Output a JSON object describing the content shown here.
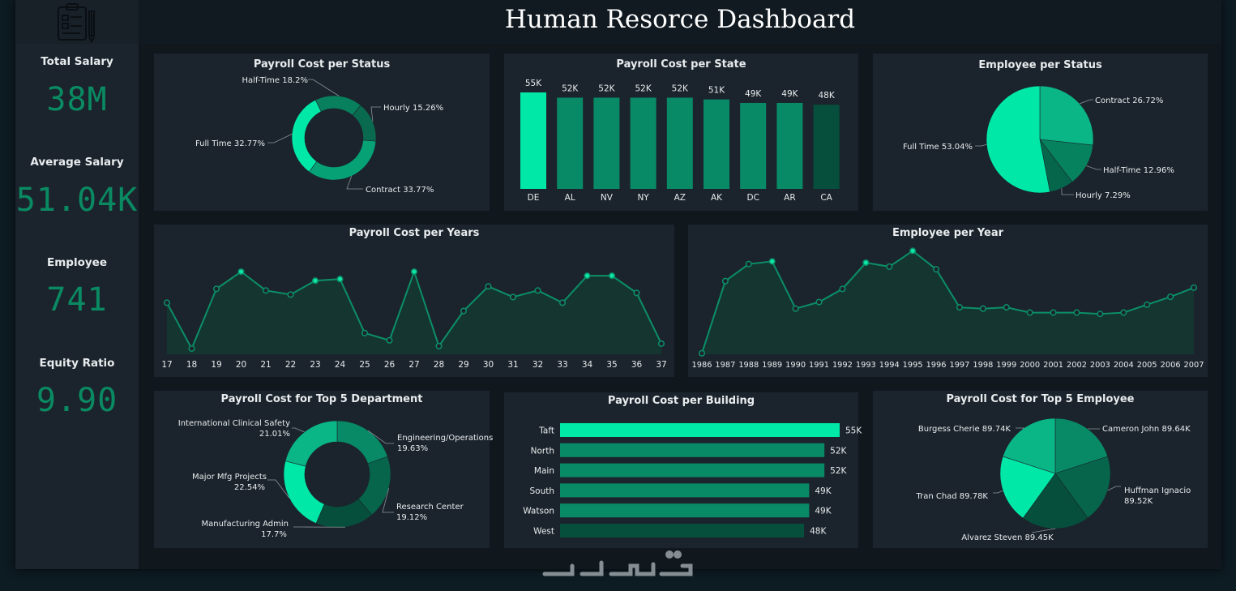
{
  "header": {
    "title": "Human Resorce Dashboard",
    "logo_icon": "clipboard-icon"
  },
  "kpis": [
    {
      "label": "Total Salary",
      "value": "38M"
    },
    {
      "label": "Average Salary",
      "value": "51.04K"
    },
    {
      "label": "Employee",
      "value": "741"
    },
    {
      "label": "Equity Ratio",
      "value": "9.90"
    }
  ],
  "colors": {
    "bright": "#00e8a8",
    "mid": "#0aa77a",
    "base": "#098a66",
    "dark": "#06654b",
    "darker": "#064f3c",
    "line": "#0b8f68",
    "area": "#153530"
  },
  "chart_data": [
    {
      "id": "payroll_status",
      "type": "pie",
      "donut": true,
      "title": "Payroll Cost per Status",
      "slices": [
        {
          "label": "Contract 33.77%",
          "value": 33.77,
          "color": "#06a276"
        },
        {
          "label": "Full Time 32.77%",
          "value": 32.77,
          "color": "#00e8a8"
        },
        {
          "label": "Half-Time 18.2%",
          "value": 18.2,
          "color": "#087f5d"
        },
        {
          "label": "Hourly 15.26%",
          "value": 15.26,
          "color": "#0a6a50"
        }
      ]
    },
    {
      "id": "payroll_state",
      "type": "bar",
      "title": "Payroll Cost per State",
      "categories": [
        "DE",
        "AL",
        "NV",
        "NY",
        "AZ",
        "AK",
        "DC",
        "AR",
        "CA"
      ],
      "values": [
        55,
        52,
        52,
        52,
        52,
        51,
        49,
        49,
        48
      ],
      "labels": [
        "55K",
        "52K",
        "52K",
        "52K",
        "52K",
        "51K",
        "49K",
        "49K",
        "48K"
      ],
      "ylim": [
        0,
        56
      ]
    },
    {
      "id": "employee_status",
      "type": "pie",
      "title": "Employee per Status",
      "slices": [
        {
          "label": "Contract 26.72%",
          "value": 26.72,
          "color": "#0ab586"
        },
        {
          "label": "Half-Time 12.96%",
          "value": 12.96,
          "color": "#07825f"
        },
        {
          "label": "Hourly 7.29%",
          "value": 7.29,
          "color": "#06664c"
        },
        {
          "label": "Full Time 53.04%",
          "value": 53.04,
          "color": "#00e8a8"
        }
      ]
    },
    {
      "id": "payroll_years",
      "type": "area",
      "title": "Payroll Cost per Years",
      "x": [
        "17",
        "18",
        "19",
        "20",
        "21",
        "22",
        "23",
        "24",
        "25",
        "26",
        "27",
        "28",
        "29",
        "30",
        "31",
        "32",
        "33",
        "34",
        "35",
        "36",
        "37"
      ],
      "values": [
        1.43,
        0.87,
        1.6,
        1.81,
        1.58,
        1.53,
        1.7,
        1.72,
        1.06,
        0.97,
        1.81,
        0.9,
        1.33,
        1.63,
        1.5,
        1.58,
        1.43,
        1.76,
        1.76,
        1.55,
        0.93
      ],
      "ylim": [
        0.8,
        1.95
      ]
    },
    {
      "id": "employee_year",
      "type": "area",
      "title": "Employee per Year",
      "x": [
        "1986",
        "1987",
        "1988",
        "1989",
        "1990",
        "1991",
        "1992",
        "1993",
        "1994",
        "1995",
        "1996",
        "1997",
        "1998",
        "1999",
        "2000",
        "2001",
        "2002",
        "2003",
        "2004",
        "2005",
        "2006",
        "2007"
      ],
      "values": [
        10,
        65,
        78,
        80,
        44,
        49,
        59,
        79,
        76,
        88,
        74,
        45,
        44,
        45,
        41,
        41,
        41,
        40,
        41,
        47,
        53,
        60
      ],
      "ylim": [
        8,
        92
      ]
    },
    {
      "id": "payroll_dept",
      "type": "pie",
      "donut": true,
      "title": "Payroll Cost for Top 5 Department",
      "slices": [
        {
          "label": "Engineering/Operations 19.63%",
          "label1": "Engineering/Operations",
          "label2": "19.63%",
          "value": 19.63,
          "color": "#098a66"
        },
        {
          "label": "Research Center 19.12%",
          "label1": "Research Center",
          "label2": "19.12%",
          "value": 19.12,
          "color": "#06654b"
        },
        {
          "label": "Manufacturing Admin 17.7%",
          "label1": "Manufacturing Admin",
          "label2": "17.7%",
          "value": 17.7,
          "color": "#064f3c"
        },
        {
          "label": "Major Mfg Projects 22.54%",
          "label1": "Major Mfg Projects",
          "label2": "22.54%",
          "value": 22.54,
          "color": "#00e8a8"
        },
        {
          "label": "International Clinical Safety 21.01%",
          "label1": "International Clinical Safety",
          "label2": "21.01%",
          "value": 21.01,
          "color": "#0ab586"
        }
      ]
    },
    {
      "id": "payroll_building",
      "type": "bar",
      "orientation": "horizontal",
      "title": "Payroll Cost per Building",
      "categories": [
        "Taft",
        "North",
        "Main",
        "South",
        "Watson",
        "West"
      ],
      "values": [
        55,
        52,
        52,
        49,
        49,
        48
      ],
      "labels": [
        "55K",
        "52K",
        "52K",
        "49K",
        "49K",
        "48K"
      ],
      "xlim": [
        0,
        55
      ]
    },
    {
      "id": "payroll_employee",
      "type": "pie",
      "title": "Payroll Cost for Top 5 Employee",
      "slices": [
        {
          "label": "Cameron John 89.64K",
          "label1": "Cameron John 89.64K",
          "label2": "",
          "value": 89.64,
          "color": "#098a66"
        },
        {
          "label": "Huffman Ignacio 89.52K",
          "label1": "Huffman Ignacio",
          "label2": "89.52K",
          "value": 89.52,
          "color": "#06654b"
        },
        {
          "label": "Alvarez Steven 89.45K",
          "label1": "Alvarez Steven 89.45K",
          "label2": "",
          "value": 89.45,
          "color": "#064f3c"
        },
        {
          "label": "Tran Chad 89.78K",
          "label1": "Tran Chad 89.78K",
          "label2": "",
          "value": 89.78,
          "color": "#00e8a8"
        },
        {
          "label": "Burgess Cherie 89.74K",
          "label1": "Burgess Cherie 89.74K",
          "label2": "",
          "value": 89.74,
          "color": "#0ab586"
        }
      ]
    }
  ]
}
